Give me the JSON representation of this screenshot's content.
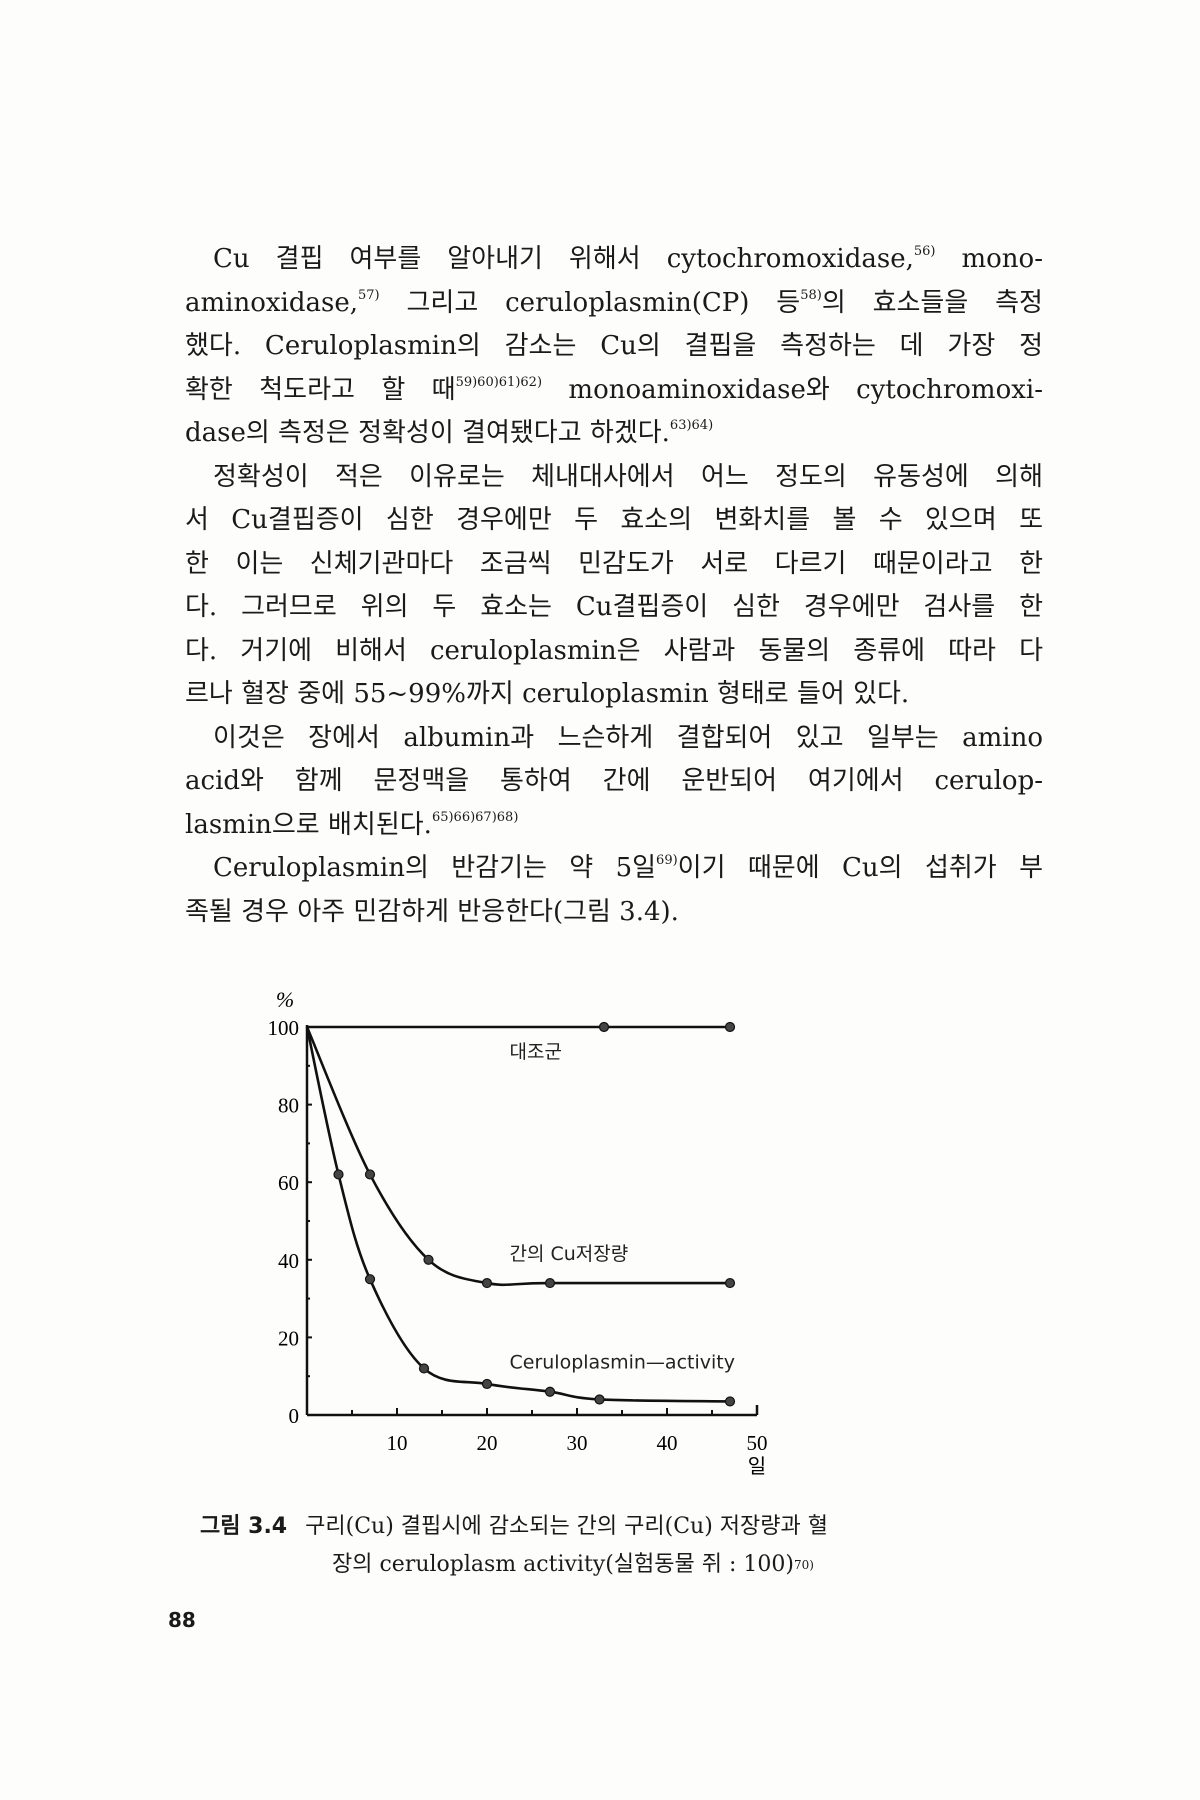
{
  "body_lines": [
    {
      "indent": true,
      "parts": [
        {
          "t": "Cu 결핍 여부를 알아내기 위해서 cytochromoxidase,"
        },
        {
          "sup": "56)"
        },
        {
          "t": " mono-"
        }
      ]
    },
    {
      "parts": [
        {
          "t": "aminoxidase,"
        },
        {
          "sup": "57)"
        },
        {
          "t": " 그리고 ceruloplasmin(CP) 등"
        },
        {
          "sup": "58)"
        },
        {
          "t": "의 효소들을 측정"
        }
      ]
    },
    {
      "parts": [
        {
          "t": "했다. Ceruloplasmin의 감소는 Cu의 결핍을 측정하는 데 가장 정"
        }
      ]
    },
    {
      "parts": [
        {
          "t": "확한 척도라고 할 때"
        },
        {
          "sup": "59)60)61)62)"
        },
        {
          "t": " monoaminoxidase와 cytochromoxi-"
        }
      ]
    },
    {
      "last": true,
      "parts": [
        {
          "t": "dase의 측정은 정확성이 결여됐다고 하겠다."
        },
        {
          "sup": "63)64)"
        }
      ]
    },
    {
      "indent": true,
      "parts": [
        {
          "t": "정확성이 적은 이유로는 체내대사에서 어느 정도의 유동성에 의해"
        }
      ]
    },
    {
      "parts": [
        {
          "t": "서 Cu결핍증이 심한 경우에만 두 효소의 변화치를 볼 수 있으며 또"
        }
      ]
    },
    {
      "parts": [
        {
          "t": "한 이는 신체기관마다 조금씩 민감도가 서로 다르기 때문이라고 한"
        }
      ]
    },
    {
      "parts": [
        {
          "t": "다. 그러므로 위의 두 효소는 Cu결핍증이 심한 경우에만 검사를 한"
        }
      ]
    },
    {
      "parts": [
        {
          "t": "다. 거기에 비해서 ceruloplasmin은 사람과 동물의 종류에 따라 다"
        }
      ]
    },
    {
      "last": true,
      "parts": [
        {
          "t": "르나 혈장 중에 55~99%까지 ceruloplasmin 형태로 들어 있다."
        }
      ]
    },
    {
      "indent": true,
      "parts": [
        {
          "t": "이것은 장에서 albumin과 느슨하게 결합되어 있고 일부는 amino"
        }
      ]
    },
    {
      "parts": [
        {
          "t": "acid와 함께 문정맥을 통하여 간에 운반되어 여기에서 cerulop-"
        }
      ]
    },
    {
      "last": true,
      "parts": [
        {
          "t": "lasmin으로 배치된다."
        },
        {
          "sup": "65)66)67)68)"
        }
      ]
    },
    {
      "indent": true,
      "parts": [
        {
          "t": "Ceruloplasmin의 반감기는 약 5일"
        },
        {
          "sup": "69)"
        },
        {
          "t": "이기 때문에 Cu의 섭취가 부"
        }
      ]
    },
    {
      "last": true,
      "parts": [
        {
          "t": "족될 경우 아주 민감하게 반응한다(그림 3.4)."
        }
      ]
    }
  ],
  "chart_data": {
    "type": "line",
    "ylabel": "%",
    "xlabel": "일",
    "xlim": [
      0,
      50
    ],
    "ylim": [
      0,
      100
    ],
    "xticks": [
      10,
      20,
      30,
      40,
      50
    ],
    "yticks": [
      0,
      20,
      40,
      60,
      80,
      100
    ],
    "grid": false,
    "series": [
      {
        "name": "대조군",
        "x": [
          0,
          33,
          47
        ],
        "y": [
          100,
          100,
          100
        ]
      },
      {
        "name": "간의 Cu저장량",
        "x": [
          0,
          7,
          13.5,
          20,
          27,
          47
        ],
        "y": [
          100,
          62,
          40,
          34,
          34,
          34
        ]
      },
      {
        "name": "Ceruloplasmin—activity",
        "x": [
          0,
          3.5,
          7,
          13,
          20,
          27,
          32.5,
          47
        ],
        "y": [
          100,
          62,
          35,
          12,
          8,
          6,
          4,
          3.5
        ]
      }
    ]
  },
  "caption": {
    "figure_label": "그림 3.4",
    "line1": "구리(Cu) 결핍시에 감소되는 간의 구리(Cu) 저장량과 혈",
    "line2": "장의 ceruloplasm activity(실험동물 쥐 : 100)",
    "line2_sup": "70)"
  },
  "page_number": "88"
}
